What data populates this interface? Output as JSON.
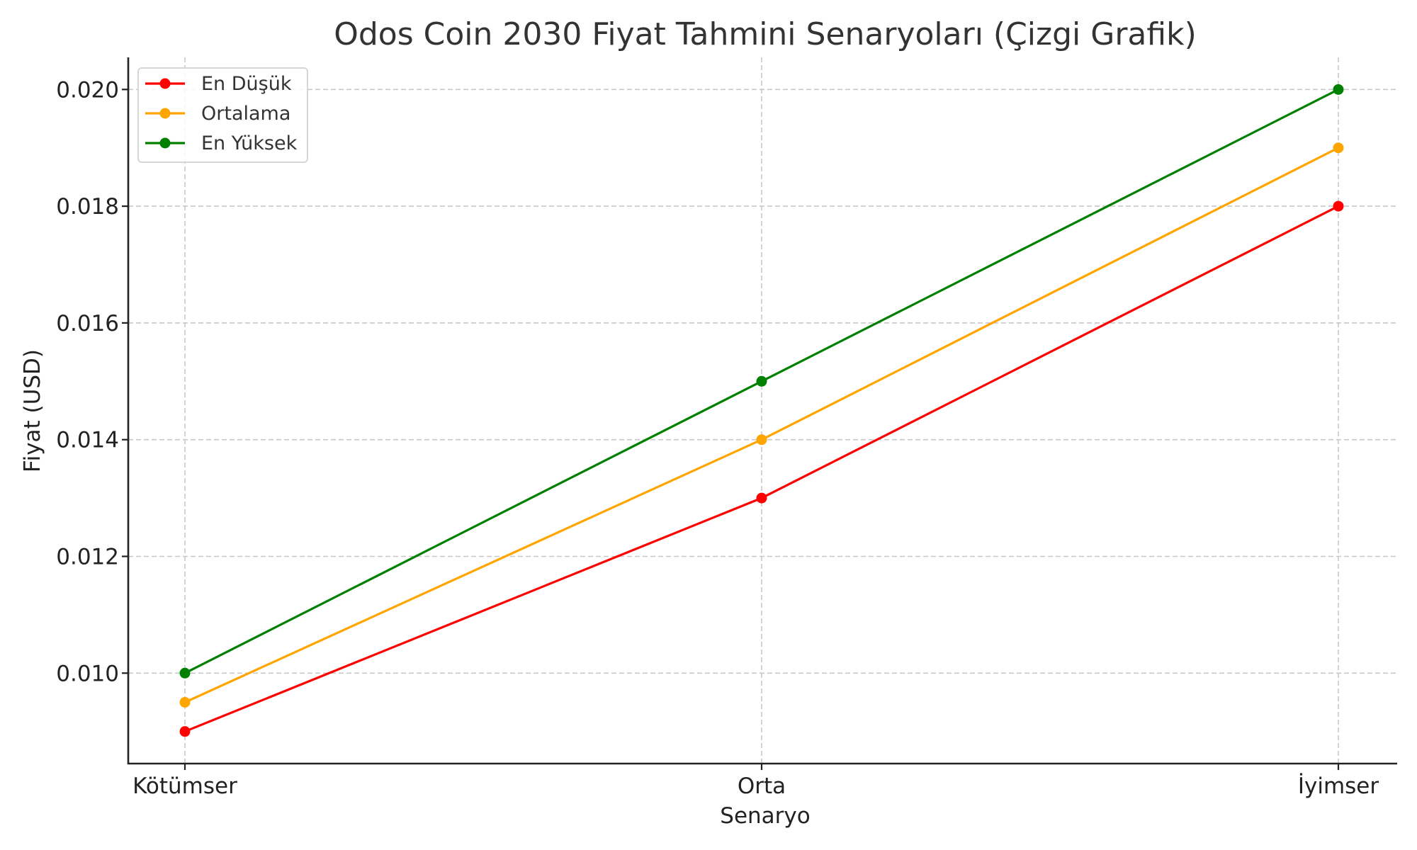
{
  "chart_data": {
    "type": "line",
    "title": "Odos Coin 2030 Fiyat Tahmini Senaryoları (Çizgi Grafik)",
    "xlabel": "Senaryo",
    "ylabel": "Fiyat (USD)",
    "categories": [
      "Kötümser",
      "Orta",
      "İyimser"
    ],
    "series": [
      {
        "name": "En Düşük",
        "color": "#ff0000",
        "values": [
          0.009,
          0.013,
          0.018
        ]
      },
      {
        "name": "Ortalama",
        "color": "#ffa500",
        "values": [
          0.0095,
          0.014,
          0.019
        ]
      },
      {
        "name": "En Yüksek",
        "color": "#008000",
        "values": [
          0.01,
          0.015,
          0.02
        ]
      }
    ],
    "yticks": [
      0.01,
      0.012,
      0.014,
      0.016,
      0.018,
      0.02
    ],
    "ytick_labels": [
      "0.010",
      "0.012",
      "0.014",
      "0.016",
      "0.018",
      "0.020"
    ],
    "ylim": [
      0.00845,
      0.02055
    ],
    "grid": true,
    "grid_style": "dashed",
    "legend_position": "upper left",
    "markers": "circle"
  }
}
